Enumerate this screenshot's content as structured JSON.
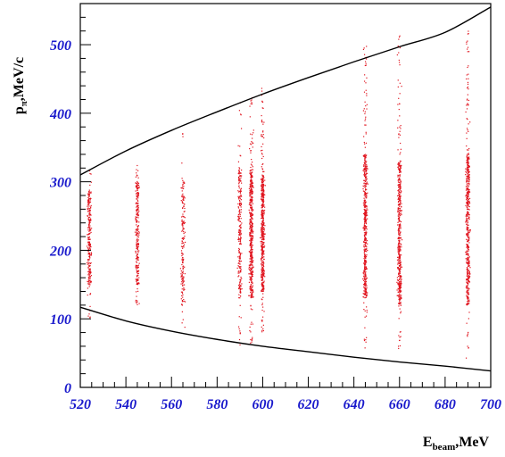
{
  "chart_data": {
    "type": "scatter",
    "title": "",
    "xlabel": {
      "main": "E",
      "sub": "beam",
      "rest": ",MeV"
    },
    "ylabel": {
      "main": "p",
      "sub": "π",
      "rest": ",MeV/c"
    },
    "xlim": [
      520,
      700
    ],
    "ylim": [
      0,
      560
    ],
    "x_ticks": [
      520,
      540,
      560,
      580,
      600,
      620,
      640,
      660,
      680,
      700
    ],
    "y_ticks": [
      0,
      100,
      200,
      300,
      400,
      500
    ],
    "grid": false,
    "legend": "none",
    "colors": {
      "points": "#e0141e",
      "curves": "#000000",
      "tick_labels": "#1a1acc",
      "frame": "#000000"
    },
    "series": [
      {
        "kind": "points",
        "clusters": [
          {
            "energy": 524,
            "p_range": [
              100,
              320
            ],
            "p_core": [
              150,
              290
            ],
            "density": "medium"
          },
          {
            "energy": 545,
            "p_range": [
              100,
              330
            ],
            "p_core": [
              150,
              300
            ],
            "density": "medium"
          },
          {
            "energy": 565,
            "p_range": [
              80,
              385
            ],
            "p_core": [
              120,
              300
            ],
            "density": "low"
          },
          {
            "energy": 590,
            "p_range": [
              60,
              420
            ],
            "p_core": [
              130,
              320
            ],
            "density": "medium"
          },
          {
            "energy": 595,
            "p_range": [
              60,
              425
            ],
            "p_core": [
              130,
              320
            ],
            "density": "high"
          },
          {
            "energy": 600,
            "p_range": [
              80,
              440
            ],
            "p_core": [
              140,
              310
            ],
            "density": "high"
          },
          {
            "energy": 645,
            "p_range": [
              55,
              500
            ],
            "p_core": [
              130,
              340
            ],
            "density": "high"
          },
          {
            "energy": 660,
            "p_range": [
              55,
              515
            ],
            "p_core": [
              120,
              330
            ],
            "density": "high"
          },
          {
            "energy": 690,
            "p_range": [
              40,
              520
            ],
            "p_core": [
              120,
              340
            ],
            "density": "high"
          }
        ]
      },
      {
        "kind": "curve",
        "name": "upper kinematic limit",
        "x": [
          520,
          540,
          560,
          580,
          600,
          620,
          640,
          660,
          680,
          700
        ],
        "y": [
          310,
          345,
          375,
          402,
          428,
          452,
          475,
          497,
          518,
          555
        ]
      },
      {
        "kind": "curve",
        "name": "lower kinematic limit",
        "x": [
          520,
          540,
          560,
          580,
          600,
          620,
          640,
          660,
          680,
          700
        ],
        "y": [
          117,
          97,
          82,
          70,
          60,
          52,
          44,
          37,
          31,
          24
        ]
      }
    ]
  }
}
